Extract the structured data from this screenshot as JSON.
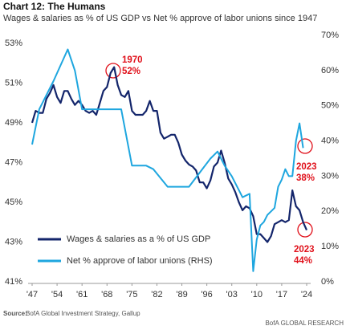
{
  "chart_data": {
    "type": "line",
    "title": "Chart 12: The Humans",
    "subtitle": "Wages & salaries as % of US GDP vs Net % approve of labor unions since 1947",
    "source_label": "Source:",
    "source": "BofA Global Investment Strategy, Gallup",
    "brand": "BofA GLOBAL RESEARCH",
    "xlim": [
      1947,
      2024
    ],
    "xticks": [
      {
        "value": 1947,
        "label": "'47"
      },
      {
        "value": 1954,
        "label": "'54"
      },
      {
        "value": 1961,
        "label": "'61"
      },
      {
        "value": 1968,
        "label": "'68"
      },
      {
        "value": 1975,
        "label": "'75"
      },
      {
        "value": 1982,
        "label": "'82"
      },
      {
        "value": 1989,
        "label": "'89"
      },
      {
        "value": 1996,
        "label": "'96"
      },
      {
        "value": 2003,
        "label": "'03"
      },
      {
        "value": 2010,
        "label": "'10"
      },
      {
        "value": 2017,
        "label": "'17"
      },
      {
        "value": 2024,
        "label": "'24"
      }
    ],
    "ylim": [
      41,
      53.4
    ],
    "yticks": [
      {
        "value": 41,
        "label": "41%"
      },
      {
        "value": 43,
        "label": "43%"
      },
      {
        "value": 45,
        "label": "45%"
      },
      {
        "value": 47,
        "label": "47%"
      },
      {
        "value": 49,
        "label": "49%"
      },
      {
        "value": 51,
        "label": "51%"
      },
      {
        "value": 53,
        "label": "53%"
      }
    ],
    "y2lim": [
      0,
      70
    ],
    "y2ticks": [
      {
        "value": 0,
        "label": "0%"
      },
      {
        "value": 10,
        "label": "10%"
      },
      {
        "value": 20,
        "label": "20%"
      },
      {
        "value": 30,
        "label": "30%"
      },
      {
        "value": 40,
        "label": "40%"
      },
      {
        "value": 50,
        "label": "50%"
      },
      {
        "value": 60,
        "label": "60%"
      },
      {
        "value": 70,
        "label": "70%"
      }
    ],
    "legend": "lower left",
    "series": [
      {
        "name": "Wages & salaries as a % of US GDP",
        "color": "#13256b",
        "x": [
          1947,
          1948,
          1949,
          1950,
          1951,
          1952,
          1953,
          1954,
          1955,
          1956,
          1957,
          1958,
          1959,
          1960,
          1961,
          1962,
          1963,
          1964,
          1965,
          1966,
          1967,
          1968,
          1969,
          1970,
          1971,
          1972,
          1973,
          1974,
          1975,
          1976,
          1977,
          1978,
          1979,
          1980,
          1981,
          1982,
          1983,
          1984,
          1985,
          1986,
          1987,
          1988,
          1989,
          1990,
          1991,
          1992,
          1993,
          1994,
          1995,
          1996,
          1997,
          1998,
          1999,
          2000,
          2001,
          2002,
          2003,
          2004,
          2005,
          2006,
          2007,
          2008,
          2009,
          2010,
          2011,
          2012,
          2013,
          2014,
          2015,
          2016,
          2017,
          2018,
          2019,
          2020,
          2021,
          2022,
          2023,
          2024
        ],
        "values": [
          49.0,
          49.6,
          49.5,
          49.5,
          50.2,
          50.5,
          50.9,
          50.3,
          50.0,
          50.6,
          50.6,
          50.2,
          49.9,
          50.1,
          49.9,
          49.6,
          49.5,
          49.6,
          49.4,
          50.0,
          50.6,
          50.8,
          51.5,
          51.8,
          50.9,
          50.4,
          50.3,
          50.6,
          49.6,
          49.4,
          49.4,
          49.4,
          49.6,
          50.1,
          49.6,
          49.6,
          48.5,
          48.2,
          48.3,
          48.4,
          48.4,
          48.0,
          47.4,
          47.1,
          46.9,
          46.8,
          46.6,
          46.0,
          46.0,
          45.7,
          46.1,
          46.8,
          47.0,
          47.6,
          47.0,
          46.2,
          45.9,
          45.5,
          45.0,
          44.6,
          44.8,
          44.7,
          44.3,
          43.4,
          43.4,
          43.2,
          43.0,
          43.3,
          43.9,
          44.0,
          44.1,
          44.0,
          44.1,
          45.6,
          44.8,
          44.6,
          44.0,
          43.6
        ]
      },
      {
        "name": "Net % approve of labor unions (RHS)",
        "color": "#1ea6df",
        "axis": "y2",
        "x": [
          1947,
          1949,
          1953,
          1957,
          1959,
          1961,
          1963,
          1965,
          1967,
          1972,
          1975,
          1978,
          1979,
          1981,
          1985,
          1988,
          1991,
          1997,
          1999,
          2001,
          2003,
          2006,
          2008,
          2009,
          2010,
          2011,
          2012,
          2013,
          2014,
          2015,
          2016,
          2017,
          2018,
          2019,
          2020,
          2021,
          2022,
          2023
        ],
        "values": [
          39,
          49,
          57,
          66,
          60,
          49,
          49,
          49,
          49,
          49,
          33,
          33,
          33,
          32,
          27,
          27,
          27,
          35,
          37,
          33,
          30,
          24,
          25,
          3,
          12,
          16,
          17,
          19,
          20,
          21,
          27,
          29,
          32,
          30,
          30,
          40,
          45,
          38
        ]
      }
    ],
    "annotations": [
      {
        "year": "1970",
        "value": "52%"
      },
      {
        "year": "2023",
        "value": "38%"
      },
      {
        "year": "2023",
        "value": "44%"
      }
    ]
  }
}
